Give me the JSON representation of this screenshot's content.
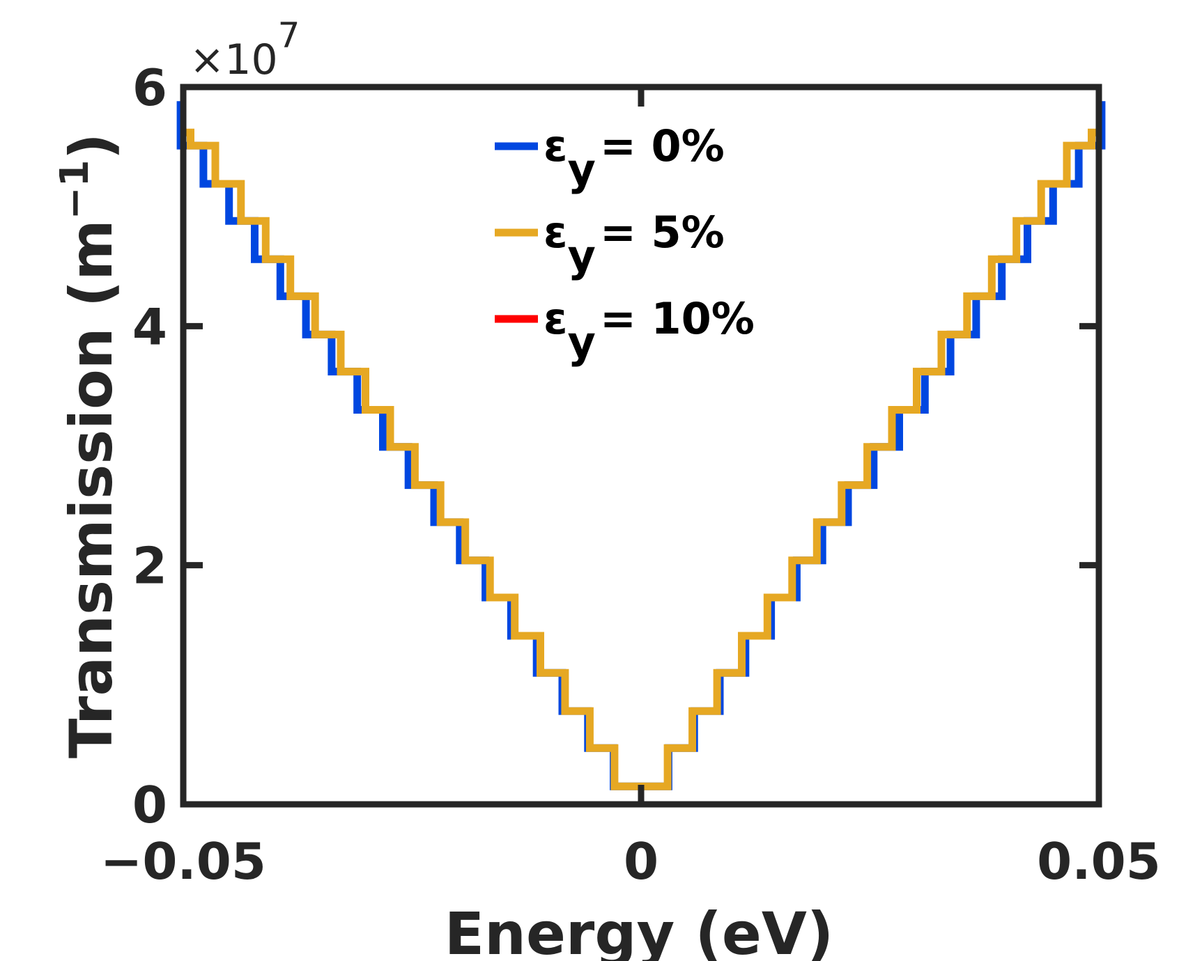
{
  "chart_data": {
    "type": "line",
    "title": "",
    "xlabel": "Energy (eV)",
    "ylabel": "Transmission (m",
    "ylabel_superscript": "−1",
    "ylabel_close": ")",
    "xlim": [
      -0.05,
      0.05
    ],
    "ylim": [
      0,
      6
    ],
    "y_scale_label": "×10",
    "y_scale_exponent": "7",
    "x_ticks": [
      -0.05,
      0,
      0.05
    ],
    "x_tick_labels": [
      "−0.05",
      "0",
      "0.05"
    ],
    "y_ticks": [
      0,
      2,
      4,
      6
    ],
    "y_tick_labels": [
      "0",
      "2",
      "4",
      "6"
    ],
    "grid": false,
    "legend_position": "top-center",
    "series": [
      {
        "name": "εy = 0%",
        "legend_symbol": "ε",
        "legend_subscript": "y",
        "legend_value": "= 0%",
        "color": "#0047e0",
        "step_x": [
          0.003,
          0.0058,
          0.0086,
          0.0114,
          0.0142,
          0.017,
          0.0198,
          0.0226,
          0.0254,
          0.0282,
          0.031,
          0.0338,
          0.0366,
          0.0394,
          0.0422,
          0.045,
          0.0478,
          0.0503
        ],
        "step_y": [
          0.15,
          0.47,
          0.78,
          1.1,
          1.41,
          1.73,
          2.04,
          2.36,
          2.67,
          2.99,
          3.3,
          3.62,
          3.93,
          4.25,
          4.56,
          4.88,
          5.19,
          5.51,
          5.85
        ]
      },
      {
        "name": "εy = 5%",
        "legend_symbol": "ε",
        "legend_subscript": "y",
        "legend_value": "= 5%",
        "color": "#e6a823",
        "step_x": [
          0.0029,
          0.0056,
          0.0083,
          0.011,
          0.0138,
          0.0165,
          0.0192,
          0.0219,
          0.0247,
          0.0274,
          0.0301,
          0.0328,
          0.0356,
          0.0383,
          0.041,
          0.0437,
          0.0465,
          0.0492
        ],
        "step_y": [
          0.15,
          0.47,
          0.78,
          1.1,
          1.41,
          1.73,
          2.04,
          2.36,
          2.67,
          2.99,
          3.3,
          3.62,
          3.93,
          4.25,
          4.56,
          4.88,
          5.19,
          5.51,
          5.62
        ]
      },
      {
        "name": "εy = 10%",
        "legend_symbol": "ε",
        "legend_subscript": "y",
        "legend_value": "= 10%",
        "color": "#ff0000",
        "step_x": [
          0.0028,
          0.0054,
          0.0081,
          0.0107,
          0.0133,
          0.016,
          0.0186,
          0.0212,
          0.0239,
          0.0265,
          0.0291,
          0.0318,
          0.0344,
          0.037,
          0.0396,
          0.0423,
          0.0449,
          0.0475,
          0.0502
        ],
        "step_y": [
          0.15,
          0.47,
          0.78,
          1.1,
          1.41,
          1.73,
          2.04,
          2.36,
          2.67,
          2.99,
          3.3,
          3.62,
          3.93,
          4.25,
          4.56,
          4.88,
          5.19,
          5.51,
          5.62
        ]
      }
    ]
  }
}
